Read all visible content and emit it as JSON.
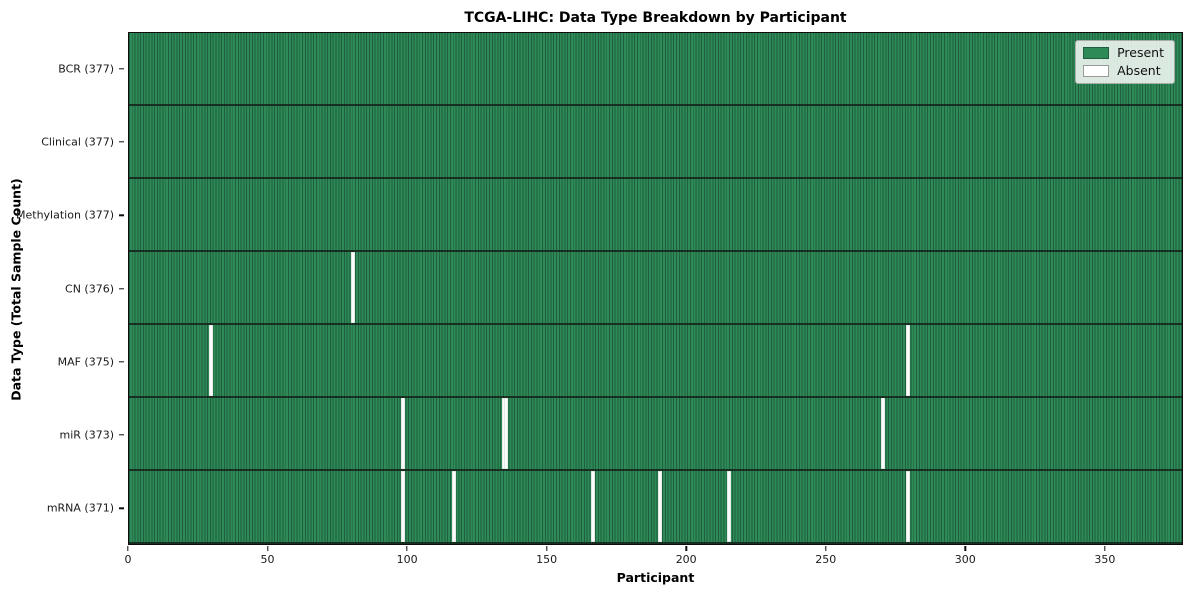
{
  "title": "TCGA-LIHC: Data Type Breakdown by Participant",
  "xlabel": "Participant",
  "ylabel": "Data Type (Total Sample Count)",
  "legend": {
    "items": [
      {
        "label": "Present",
        "color": "#2e8b57",
        "border": "#1f5e3e"
      },
      {
        "label": "Absent",
        "color": "#ffffff",
        "border": "#9a9a9a"
      }
    ]
  },
  "chart_data": {
    "type": "heatmap",
    "title": "TCGA-LIHC: Data Type Breakdown by Participant",
    "xlabel": "Participant",
    "ylabel": "Data Type (Total Sample Count)",
    "n_participants": 377,
    "x_range": [
      0,
      378
    ],
    "x_ticks": [
      0,
      50,
      100,
      150,
      200,
      250,
      300,
      350
    ],
    "grid": "per-participant vertical gridlines, dark row separators",
    "legend_position": "upper right",
    "colors": {
      "present": "#2e8b57",
      "absent": "#ffffff",
      "gridline": "#1f5e3e"
    },
    "rows": [
      {
        "label": "BCR (377)",
        "total": 377,
        "absent_at": []
      },
      {
        "label": "Clinical (377)",
        "total": 377,
        "absent_at": []
      },
      {
        "label": "Methylation (377)",
        "total": 377,
        "absent_at": []
      },
      {
        "label": "CN (376)",
        "total": 376,
        "absent_at": [
          80
        ]
      },
      {
        "label": "MAF (375)",
        "total": 375,
        "absent_at": [
          29,
          279
        ]
      },
      {
        "label": "miR (373)",
        "total": 373,
        "absent_at": [
          98,
          134,
          135,
          270
        ]
      },
      {
        "label": "mRNA (371)",
        "total": 371,
        "absent_at": [
          98,
          116,
          166,
          190,
          215,
          279
        ]
      }
    ]
  }
}
